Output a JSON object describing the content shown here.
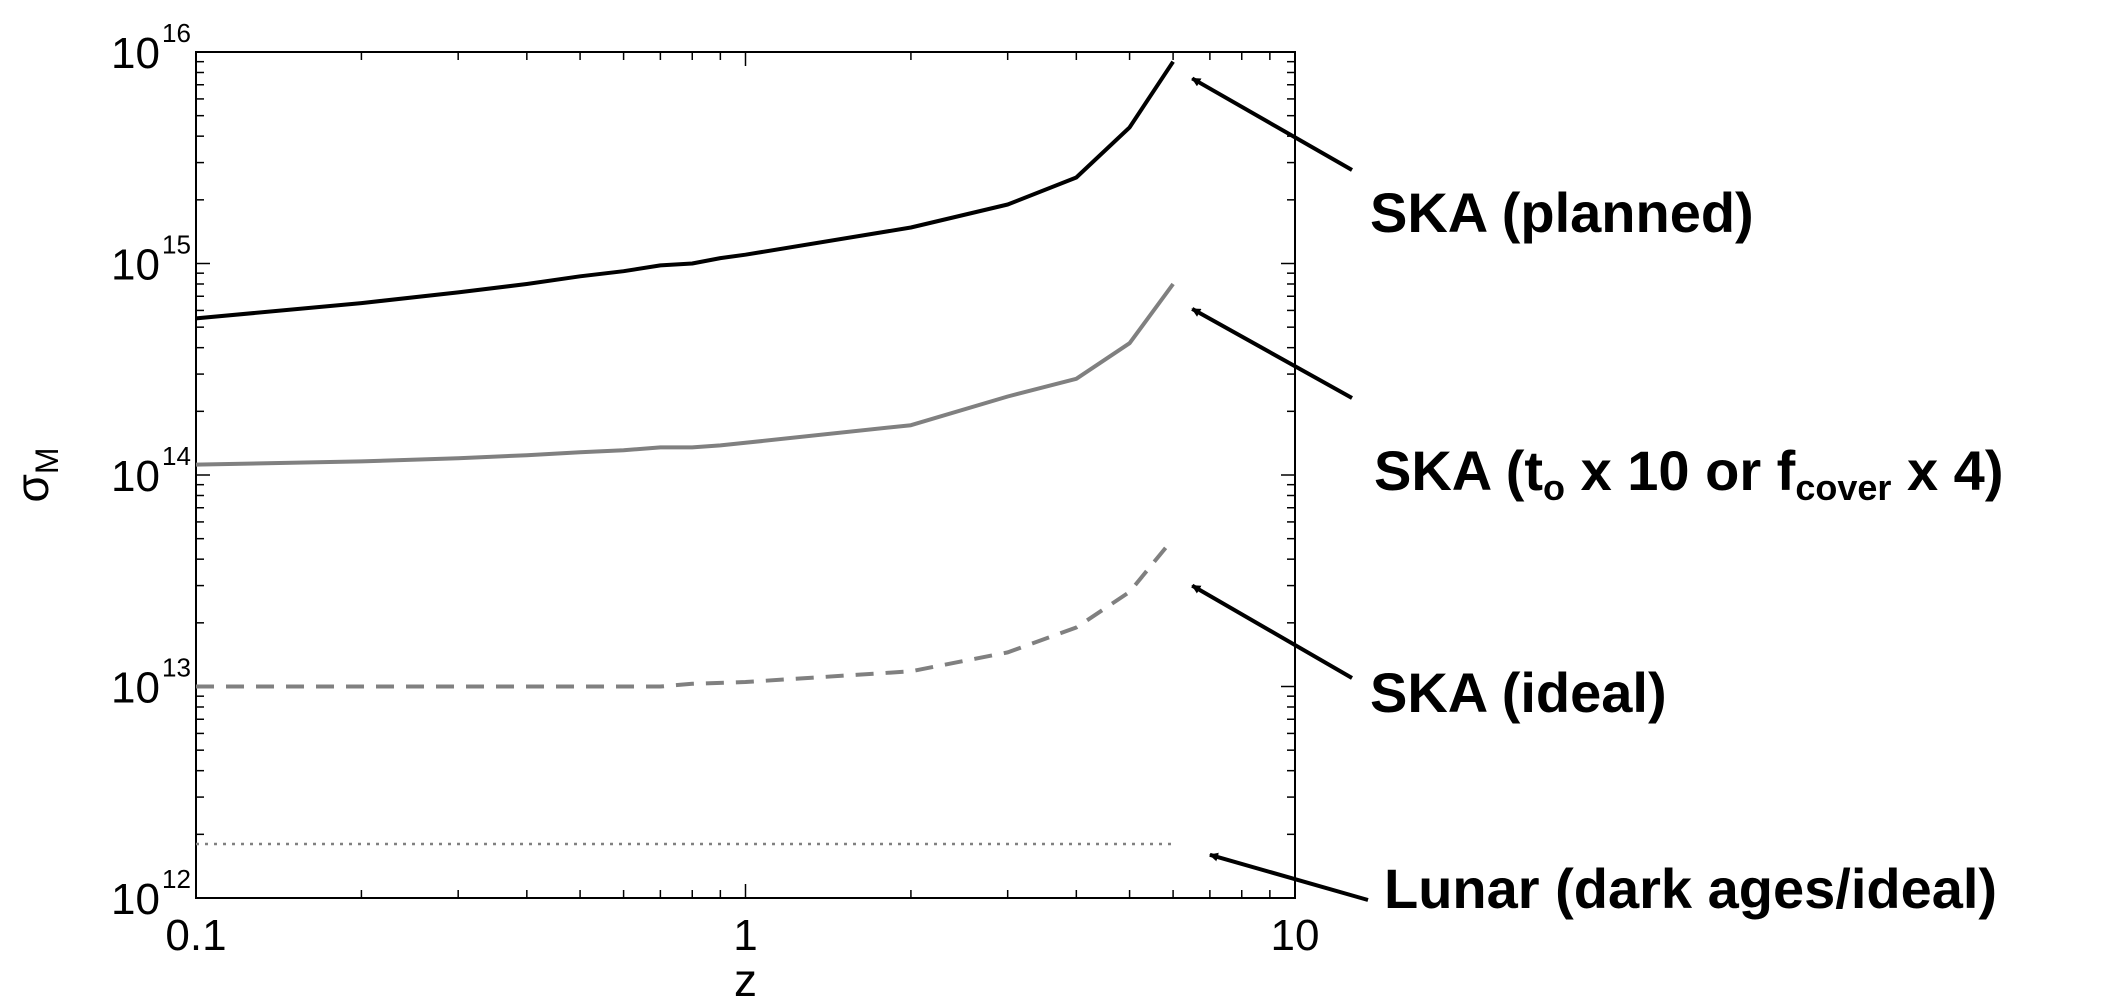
{
  "chart_data": {
    "type": "line",
    "title": "",
    "xlabel": "z",
    "ylabel": "σ",
    "ylabel_sub": "M",
    "x_scale": "log",
    "y_scale": "log",
    "xlim": [
      0.1,
      10
    ],
    "ylim": [
      1000000000000.0,
      1e+16
    ],
    "grid": false,
    "x_ticks": [
      {
        "value": 0.1,
        "label": "0.1"
      },
      {
        "value": 1,
        "label": "1"
      },
      {
        "value": 10,
        "label": "10"
      }
    ],
    "y_ticks": [
      {
        "value": 1000000000000.0,
        "base": "10",
        "exp": "12"
      },
      {
        "value": 10000000000000.0,
        "base": "10",
        "exp": "13"
      },
      {
        "value": 100000000000000.0,
        "base": "10",
        "exp": "14"
      },
      {
        "value": 1000000000000000.0,
        "base": "10",
        "exp": "15"
      },
      {
        "value": 1e+16,
        "base": "10",
        "exp": "16"
      }
    ],
    "series": [
      {
        "style": "solid",
        "color": "#000000",
        "x": [
          0.1,
          0.2,
          0.3,
          0.4,
          0.5,
          0.6,
          0.7,
          0.8,
          0.9,
          1,
          2,
          3,
          4,
          5,
          6
        ],
        "y": [
          550000000000000.0,
          650000000000000.0,
          730000000000000.0,
          800000000000000.0,
          870000000000000.0,
          920000000000000.0,
          980000000000000.0,
          1000000000000000.0,
          1060000000000000.0,
          1100000000000000.0,
          1480000000000000.0,
          1900000000000000.0,
          2550000000000000.0,
          4400000000000000.0,
          9000000000000000.0
        ]
      },
      {
        "style": "solid",
        "color": "#808080",
        "x": [
          0.1,
          0.2,
          0.3,
          0.4,
          0.5,
          0.6,
          0.7,
          0.8,
          0.9,
          1,
          2,
          3,
          4,
          5,
          6
        ],
        "y": [
          112000000000000.0,
          116000000000000.0,
          120000000000000.0,
          124000000000000.0,
          128000000000000.0,
          131000000000000.0,
          135000000000000.0,
          135000000000000.0,
          138000000000000.0,
          142000000000000.0,
          172000000000000.0,
          235000000000000.0,
          285000000000000.0,
          420000000000000.0,
          800000000000000.0
        ]
      },
      {
        "style": "dashed",
        "color": "#808080",
        "x": [
          0.1,
          0.2,
          0.3,
          0.4,
          0.5,
          0.6,
          0.7,
          0.8,
          0.9,
          1,
          2,
          3,
          4,
          5,
          6
        ],
        "y": [
          10000000000000.0,
          10000000000000.0,
          10000000000000.0,
          10000000000000.0,
          10000000000000.0,
          10000000000000.0,
          10000000000000.0,
          10300000000000.0,
          10400000000000.0,
          10500000000000.0,
          11800000000000.0,
          14500000000000.0,
          19000000000000.0,
          28000000000000.0,
          50000000000000.0
        ]
      },
      {
        "style": "dotted",
        "color": "#808080",
        "x": [
          0.1,
          6
        ],
        "y": [
          1800000000000.0,
          1800000000000.0
        ]
      }
    ],
    "annotations": [
      {
        "text": "SKA (planned)",
        "arrow_to": {
          "x": 6.5,
          "y": 7500000000000000.0
        }
      },
      {
        "parts": [
          "SKA (t",
          "o",
          " x 10 or f",
          "cover",
          " x 4)"
        ],
        "arrow_to": {
          "x": 6.5,
          "y": 610000000000000.0
        }
      },
      {
        "text": "SKA (ideal)",
        "arrow_to": {
          "x": 6.5,
          "y": 30000000000000.0
        }
      },
      {
        "text": "Lunar (dark ages/ideal)",
        "arrow_to": {
          "x": 7.0,
          "y": 1600000000000.0
        }
      }
    ]
  }
}
